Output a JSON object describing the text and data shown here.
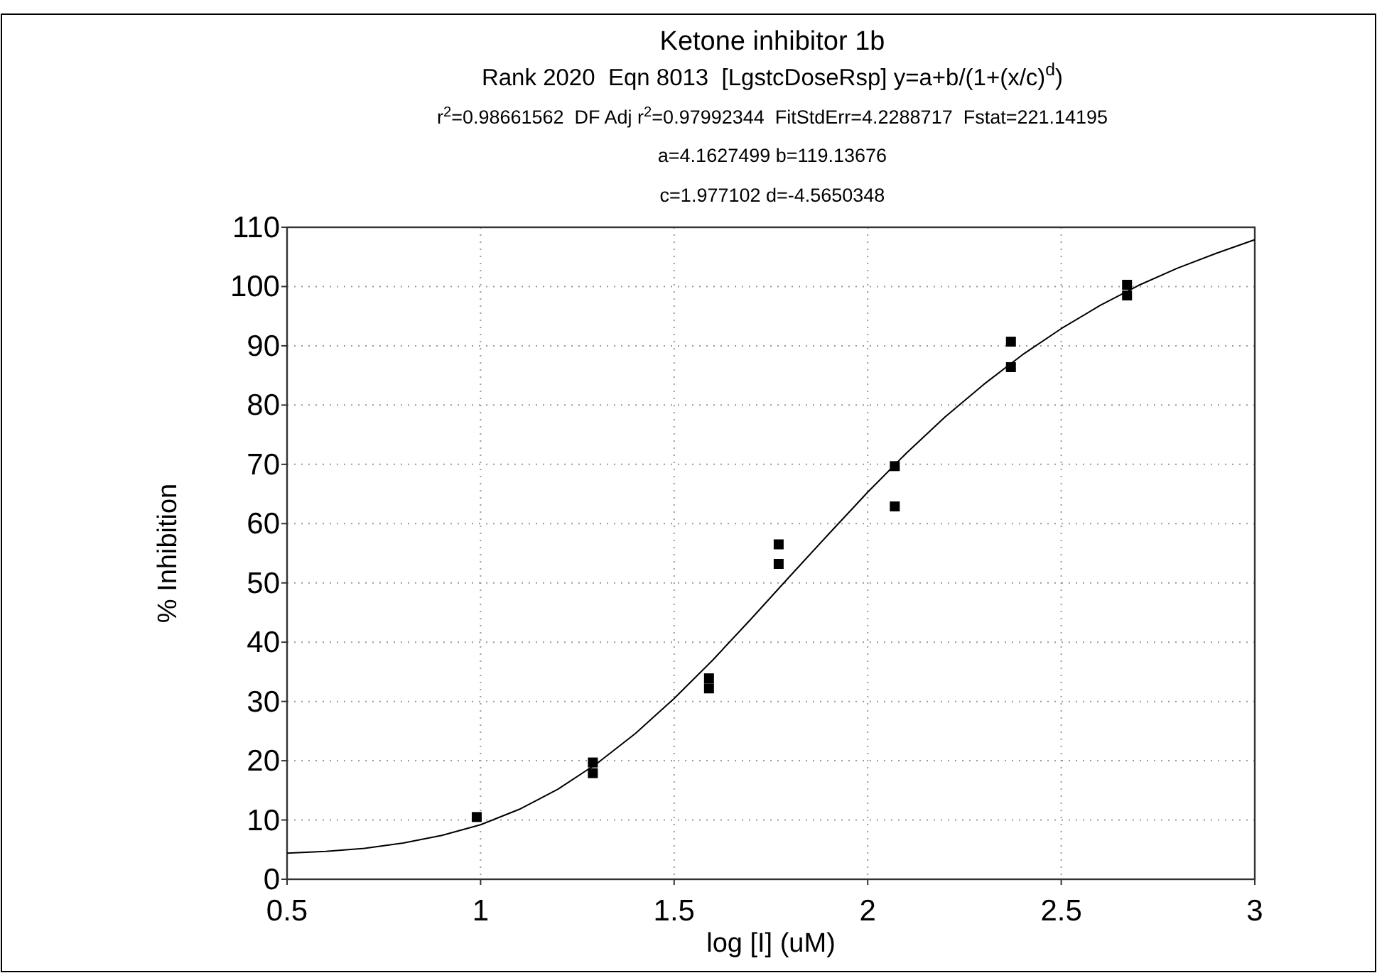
{
  "chart_data": {
    "type": "scatter",
    "title": "Ketone inhibitor 1b",
    "subtitle": "Rank 2020  Eqn 8013  [LgstcDoseRsp] y=a+b/(1+(x/c)$^{d}$)",
    "annotations": [
      "r$^{2}$=0.98661562  DF Adj r$^{2}$=0.97992344  FitStdErr=4.2288717  Fstat=221.14195",
      "a=4.1627499 b=119.13676",
      "c=1.977102 d=-4.5650348"
    ],
    "xlabel": "log [I] (uM)",
    "ylabel": "% Inhibition",
    "xlim": [
      0.5,
      3
    ],
    "xticks": [
      0.5,
      1,
      1.5,
      2,
      2.5,
      3
    ],
    "ylim": [
      0,
      110
    ],
    "yticks": [
      0,
      10,
      20,
      30,
      40,
      50,
      60,
      70,
      80,
      90,
      100,
      110
    ],
    "grid": true,
    "series": [
      {
        "marker": "square",
        "color": "#000000",
        "x": [
          0.99,
          1.29,
          1.29,
          1.59,
          1.59,
          1.77,
          1.77,
          2.07,
          2.07,
          2.37,
          2.37,
          2.67,
          2.67
        ],
        "values": [
          10.5,
          19.7,
          17.9,
          33.9,
          32.2,
          56.5,
          53.2,
          69.7,
          62.9,
          90.7,
          86.4,
          100.3,
          98.5
        ]
      },
      {
        "type": "line",
        "marker": "none",
        "color": "#000000",
        "line_style": "solid",
        "x": [
          0.5,
          0.6,
          0.7,
          0.8,
          0.9,
          1.0,
          1.1,
          1.2,
          1.3,
          1.4,
          1.5,
          1.6,
          1.7,
          1.8,
          1.9,
          2.0,
          2.1,
          2.2,
          2.3,
          2.4,
          2.5,
          2.6,
          2.7,
          2.8,
          2.9,
          3.0
        ],
        "values": [
          4.4,
          4.7,
          5.2,
          6.1,
          7.4,
          9.2,
          11.8,
          15.2,
          19.5,
          24.6,
          30.5,
          37.0,
          44.0,
          51.2,
          58.3,
          65.3,
          71.9,
          78.0,
          83.5,
          88.5,
          92.9,
          96.8,
          100.2,
          103.1,
          105.6,
          107.9
        ]
      }
    ]
  }
}
